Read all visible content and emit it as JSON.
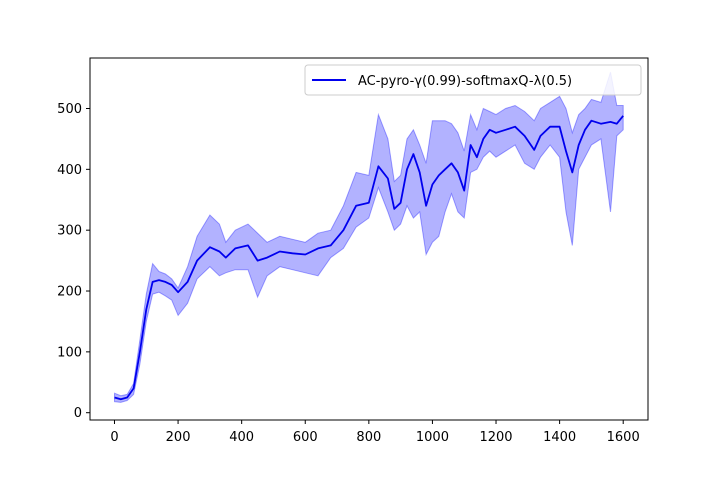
{
  "chart_data": {
    "type": "line",
    "title": "",
    "xlabel": "",
    "ylabel": "",
    "xlim": [
      -77,
      1678
    ],
    "ylim": [
      -12,
      583
    ],
    "xticks": [
      0,
      200,
      400,
      600,
      800,
      1000,
      1200,
      1400,
      1600
    ],
    "yticks": [
      0,
      100,
      200,
      300,
      400,
      500
    ],
    "grid": false,
    "legend_position": "top-right",
    "series": [
      {
        "name": "AC-pyro-γ(0.99)-softmaxQ-λ(0.5)",
        "color": "#0000ee",
        "band_color": "#0000ff",
        "x": [
          0,
          20,
          40,
          60,
          80,
          100,
          120,
          140,
          160,
          180,
          200,
          230,
          260,
          300,
          330,
          350,
          380,
          420,
          450,
          480,
          520,
          560,
          600,
          640,
          680,
          720,
          760,
          800,
          830,
          860,
          880,
          900,
          920,
          940,
          960,
          980,
          1000,
          1020,
          1040,
          1060,
          1080,
          1100,
          1120,
          1140,
          1160,
          1180,
          1200,
          1230,
          1260,
          1290,
          1320,
          1340,
          1370,
          1400,
          1420,
          1440,
          1460,
          1480,
          1500,
          1530,
          1560,
          1580,
          1600
        ],
        "mean": [
          25,
          22,
          25,
          40,
          100,
          170,
          215,
          218,
          215,
          210,
          198,
          215,
          250,
          272,
          265,
          255,
          270,
          275,
          250,
          255,
          265,
          262,
          260,
          270,
          275,
          300,
          340,
          345,
          405,
          385,
          335,
          345,
          400,
          425,
          395,
          340,
          375,
          390,
          400,
          410,
          395,
          365,
          440,
          420,
          450,
          465,
          460,
          465,
          470,
          455,
          432,
          455,
          470,
          470,
          430,
          395,
          440,
          465,
          480,
          475,
          478,
          475,
          488
        ],
        "lower": [
          18,
          17,
          20,
          30,
          80,
          150,
          195,
          198,
          192,
          185,
          160,
          180,
          220,
          240,
          225,
          230,
          235,
          235,
          190,
          225,
          240,
          235,
          230,
          225,
          255,
          270,
          305,
          320,
          370,
          330,
          300,
          310,
          340,
          320,
          330,
          260,
          280,
          290,
          330,
          360,
          330,
          320,
          395,
          400,
          420,
          430,
          420,
          430,
          440,
          410,
          400,
          420,
          440,
          420,
          330,
          275,
          400,
          420,
          440,
          450,
          330,
          455,
          465
        ],
        "upper": [
          32,
          28,
          30,
          48,
          120,
          195,
          245,
          232,
          228,
          220,
          205,
          240,
          290,
          325,
          310,
          280,
          300,
          310,
          295,
          280,
          290,
          285,
          280,
          295,
          300,
          340,
          395,
          390,
          490,
          450,
          380,
          390,
          450,
          465,
          440,
          410,
          480,
          480,
          480,
          475,
          460,
          430,
          490,
          465,
          500,
          495,
          490,
          500,
          505,
          495,
          480,
          500,
          510,
          520,
          500,
          460,
          490,
          500,
          515,
          510,
          560,
          505,
          505
        ]
      }
    ]
  }
}
